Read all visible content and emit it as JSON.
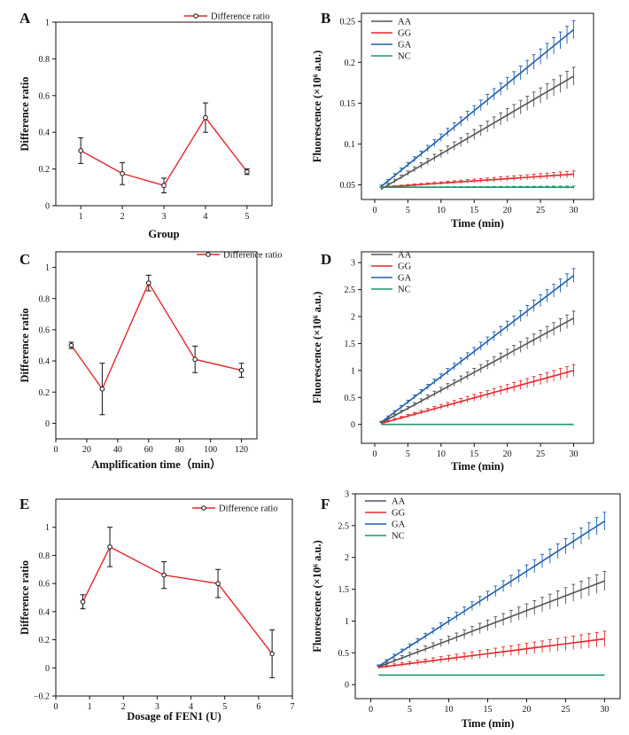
{
  "chart_data": [
    {
      "panel": "A",
      "type": "line",
      "xlabel": "Group",
      "ylabel": "Difference ratio",
      "xlim": [
        0.4,
        5.6
      ],
      "ylim": [
        0,
        1
      ],
      "xticks": [
        1,
        2,
        3,
        4,
        5
      ],
      "yticks": [
        0,
        0.2,
        0.4,
        0.6,
        0.8,
        1
      ],
      "xtick_labels": [
        "1",
        "2",
        "3",
        "4",
        "5"
      ],
      "ytick_labels": [
        "0",
        "0.2",
        "0.4",
        "0.6",
        "0.8",
        "1"
      ],
      "legend": "top-center",
      "series": [
        {
          "name": "Difference ratio",
          "color": "#e8262b",
          "x": [
            1,
            2,
            3,
            4,
            5
          ],
          "y": [
            0.3,
            0.175,
            0.11,
            0.48,
            0.185
          ],
          "err": [
            0.07,
            0.06,
            0.04,
            0.08,
            0.015
          ]
        }
      ]
    },
    {
      "panel": "B",
      "type": "line",
      "xlabel": "Time (min)",
      "ylabel": "Fluorescence (×10⁶ a.u.)",
      "xlim": [
        -2,
        33
      ],
      "ylim": [
        0.032,
        0.26
      ],
      "xticks": [
        0,
        5,
        10,
        15,
        20,
        25,
        30
      ],
      "yticks": [
        0.05,
        0.1,
        0.15,
        0.2,
        0.25
      ],
      "xtick_labels": [
        "0",
        "5",
        "10",
        "15",
        "20",
        "25",
        "30"
      ],
      "ytick_labels": [
        "0.05",
        "0.1",
        "0.15",
        "0.2",
        "0.25"
      ],
      "legend": "top-left",
      "series": [
        {
          "name": "AA",
          "color": "#555555",
          "start": 0.045,
          "end": 0.183,
          "err_end": 0.011
        },
        {
          "name": "GG",
          "color": "#e8262b",
          "start": 0.047,
          "end": 0.063,
          "err_end": 0.004
        },
        {
          "name": "GA",
          "color": "#1f5faf",
          "start": 0.048,
          "end": 0.24,
          "err_end": 0.011
        },
        {
          "name": "NC",
          "color": "#1a9a6c",
          "start": 0.047,
          "end": 0.047,
          "err_end": 0.0015
        }
      ]
    },
    {
      "panel": "C",
      "type": "line",
      "xlabel": "Amplification time（min）",
      "ylabel": "Difference ratio",
      "xlim": [
        0,
        130
      ],
      "ylim": [
        -0.1,
        1.1
      ],
      "xticks": [
        0,
        20,
        40,
        60,
        80,
        100,
        120
      ],
      "yticks": [
        0,
        0.2,
        0.4,
        0.6,
        0.8,
        1
      ],
      "xtick_labels": [
        "0",
        "20",
        "40",
        "60",
        "80",
        "100",
        "120"
      ],
      "ytick_labels": [
        "0",
        "0.2",
        "0.4",
        "0.6",
        "0.8",
        "1"
      ],
      "legend": "top-right",
      "series": [
        {
          "name": "Difference ratio",
          "color": "#e8262b",
          "x": [
            10,
            30,
            60,
            90,
            120
          ],
          "y": [
            0.5,
            0.22,
            0.9,
            0.41,
            0.34
          ],
          "err": [
            0.02,
            0.165,
            0.05,
            0.085,
            0.045
          ]
        }
      ]
    },
    {
      "panel": "D",
      "type": "line",
      "xlabel": "Time (min)",
      "ylabel": "Fluorescence (×10⁶ a.u.)",
      "xlim": [
        -2,
        33
      ],
      "ylim": [
        -0.35,
        3.2
      ],
      "xticks": [
        0,
        5,
        10,
        15,
        20,
        25,
        30
      ],
      "yticks": [
        0,
        0.5,
        1,
        1.5,
        2,
        2.5,
        3
      ],
      "xtick_labels": [
        "0",
        "5",
        "10",
        "15",
        "20",
        "25",
        "30"
      ],
      "ytick_labels": [
        "0",
        "0.5",
        "1",
        "1.5",
        "2",
        "2.5",
        "3"
      ],
      "legend": "top-left",
      "series": [
        {
          "name": "AA",
          "color": "#555555",
          "start": 0.03,
          "end": 1.97,
          "err_end": 0.13
        },
        {
          "name": "GG",
          "color": "#e8262b",
          "start": 0.02,
          "end": 1.0,
          "err_end": 0.11
        },
        {
          "name": "GA",
          "color": "#1f5faf",
          "start": 0.04,
          "end": 2.76,
          "err_end": 0.13
        },
        {
          "name": "NC",
          "color": "#1a9a6c",
          "start": 0.0,
          "end": 0.0,
          "err_end": 0.0
        }
      ]
    },
    {
      "panel": "E",
      "type": "line",
      "xlabel": "Dosage of FEN1 (U)",
      "ylabel": "Difference ratio",
      "xlim": [
        0,
        7
      ],
      "ylim": [
        -0.2,
        1.2
      ],
      "xticks": [
        0,
        1,
        2,
        3,
        4,
        5,
        6,
        7
      ],
      "yticks": [
        -0.2,
        0,
        0.2,
        0.4,
        0.6,
        0.8,
        1
      ],
      "xtick_labels": [
        "0",
        "1",
        "2",
        "3",
        "4",
        "5",
        "6",
        "7"
      ],
      "ytick_labels": [
        "−0.2",
        "0",
        "0.2",
        "0.4",
        "0.6",
        "0.8",
        "1"
      ],
      "legend": "top-right",
      "series": [
        {
          "name": "Difference ratio",
          "color": "#e8262b",
          "x": [
            0.8,
            1.6,
            3.2,
            4.8,
            6.4
          ],
          "y": [
            0.47,
            0.86,
            0.66,
            0.6,
            0.1
          ],
          "err": [
            0.05,
            0.14,
            0.095,
            0.1,
            0.17
          ]
        }
      ]
    },
    {
      "panel": "F",
      "type": "line",
      "xlabel": "Time (min)",
      "ylabel": "Fluorescence (×10⁶ a.u.)",
      "xlim": [
        -2,
        32
      ],
      "ylim": [
        -0.22,
        3
      ],
      "xticks": [
        0,
        5,
        10,
        15,
        20,
        25,
        30
      ],
      "yticks": [
        0,
        0.5,
        1,
        1.5,
        2,
        2.5,
        3
      ],
      "xtick_labels": [
        "0",
        "5",
        "10",
        "15",
        "20",
        "25",
        "30"
      ],
      "ytick_labels": [
        "0",
        "0.5",
        "1",
        "1.5",
        "2",
        "2.5",
        "3"
      ],
      "legend": "top-left",
      "series": [
        {
          "name": "AA",
          "color": "#555555",
          "start": 0.28,
          "end": 1.63,
          "err_end": 0.15
        },
        {
          "name": "GG",
          "color": "#e8262b",
          "start": 0.27,
          "end": 0.72,
          "err_end": 0.12
        },
        {
          "name": "GA",
          "color": "#1f5faf",
          "start": 0.29,
          "end": 2.57,
          "err_end": 0.14
        },
        {
          "name": "NC",
          "color": "#1a9a6c",
          "start": 0.15,
          "end": 0.15,
          "err_end": 0.0
        }
      ]
    }
  ]
}
